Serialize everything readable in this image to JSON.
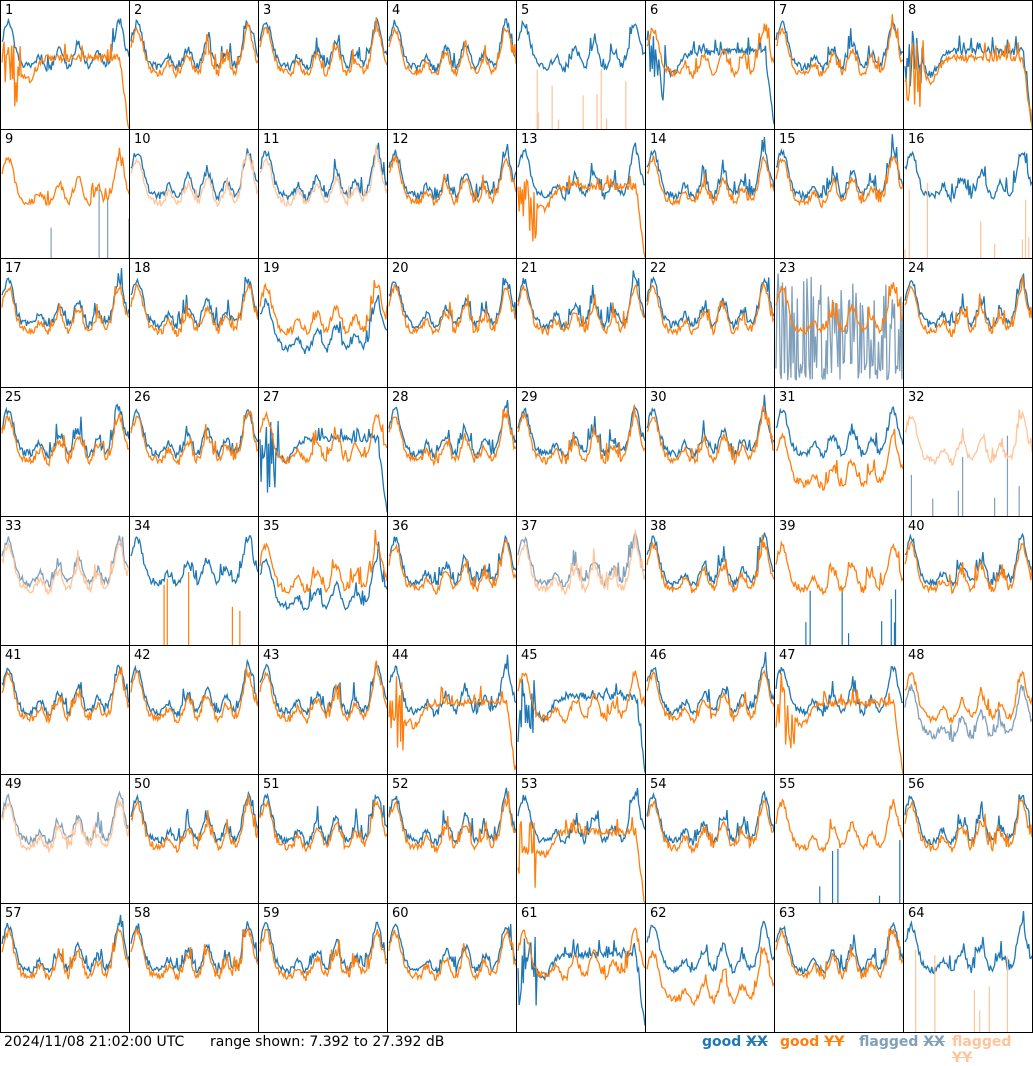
{
  "footer": {
    "timestamp": "2024/11/08 21:02:00 UTC",
    "range": "range shown: 7.392 to 27.392 dB"
  },
  "legend": [
    {
      "pre": "good ",
      "rest": "XX",
      "color": "#1f77b4"
    },
    {
      "pre": "good ",
      "rest": "YY",
      "color": "#ff7f0e"
    },
    {
      "pre": "flagged ",
      "rest": "XX",
      "color": "#7f9fba"
    },
    {
      "pre": "flagged ",
      "rest": "YY",
      "color": "#ffc49a"
    }
  ],
  "colors": {
    "good_xx": "#1f77b4",
    "good_yy": "#ff7f0e",
    "flagged_xx": "#7f9fba",
    "flagged_yy": "#ffc49a"
  },
  "chart_data": {
    "type": "line",
    "layout": "8x8 small multiples",
    "ylim_db": [
      7.392,
      27.392
    ],
    "series_names": [
      "good XX",
      "good YY",
      "flagged XX",
      "flagged YY"
    ],
    "panels": [
      {
        "n": 1,
        "xx": "good",
        "yy": "good",
        "xx_shape": "normal",
        "yy_shape": "plateau"
      },
      {
        "n": 2,
        "xx": "good",
        "yy": "good",
        "xx_shape": "normal",
        "yy_shape": "normal"
      },
      {
        "n": 3,
        "xx": "good",
        "yy": "good",
        "xx_shape": "normal",
        "yy_shape": "normal"
      },
      {
        "n": 4,
        "xx": "good",
        "yy": "good",
        "xx_shape": "normal",
        "yy_shape": "normal"
      },
      {
        "n": 5,
        "xx": "good",
        "yy": "flagged",
        "xx_shape": "normal",
        "yy_shape": "spikes"
      },
      {
        "n": 6,
        "xx": "good",
        "yy": "good",
        "xx_shape": "plateau",
        "yy_shape": "normal"
      },
      {
        "n": 7,
        "xx": "good",
        "yy": "good",
        "xx_shape": "normal",
        "yy_shape": "normal"
      },
      {
        "n": 8,
        "xx": "good",
        "yy": "good",
        "xx_shape": "plateau",
        "yy_shape": "plateau"
      },
      {
        "n": 9,
        "xx": "flagged",
        "yy": "good",
        "xx_shape": "spikes",
        "yy_shape": "normal"
      },
      {
        "n": 10,
        "xx": "good",
        "yy": "flagged",
        "xx_shape": "normal",
        "yy_shape": "normal"
      },
      {
        "n": 11,
        "xx": "good",
        "yy": "flagged",
        "xx_shape": "normal",
        "yy_shape": "normal"
      },
      {
        "n": 12,
        "xx": "good",
        "yy": "good",
        "xx_shape": "normal",
        "yy_shape": "normal"
      },
      {
        "n": 13,
        "xx": "good",
        "yy": "good",
        "xx_shape": "normal",
        "yy_shape": "plateau"
      },
      {
        "n": 14,
        "xx": "good",
        "yy": "good",
        "xx_shape": "normal",
        "yy_shape": "normal"
      },
      {
        "n": 15,
        "xx": "good",
        "yy": "good",
        "xx_shape": "normal",
        "yy_shape": "normal"
      },
      {
        "n": 16,
        "xx": "good",
        "yy": "flagged",
        "xx_shape": "normal",
        "yy_shape": "spikes"
      },
      {
        "n": 17,
        "xx": "good",
        "yy": "good",
        "xx_shape": "normal",
        "yy_shape": "normal"
      },
      {
        "n": 18,
        "xx": "good",
        "yy": "good",
        "xx_shape": "normal",
        "yy_shape": "normal"
      },
      {
        "n": 19,
        "xx": "good",
        "yy": "good",
        "xx_shape": "low",
        "yy_shape": "normal"
      },
      {
        "n": 20,
        "xx": "good",
        "yy": "good",
        "xx_shape": "normal",
        "yy_shape": "normal"
      },
      {
        "n": 21,
        "xx": "good",
        "yy": "good",
        "xx_shape": "normal",
        "yy_shape": "normal"
      },
      {
        "n": 22,
        "xx": "good",
        "yy": "good",
        "xx_shape": "normal",
        "yy_shape": "normal"
      },
      {
        "n": 23,
        "xx": "flagged",
        "yy": "good",
        "xx_shape": "noisy",
        "yy_shape": "normal"
      },
      {
        "n": 24,
        "xx": "good",
        "yy": "good",
        "xx_shape": "normal",
        "yy_shape": "normal"
      },
      {
        "n": 25,
        "xx": "good",
        "yy": "good",
        "xx_shape": "normal",
        "yy_shape": "normal"
      },
      {
        "n": 26,
        "xx": "good",
        "yy": "good",
        "xx_shape": "normal",
        "yy_shape": "normal"
      },
      {
        "n": 27,
        "xx": "good",
        "yy": "good",
        "xx_shape": "plateau",
        "yy_shape": "normal"
      },
      {
        "n": 28,
        "xx": "good",
        "yy": "good",
        "xx_shape": "normal",
        "yy_shape": "normal"
      },
      {
        "n": 29,
        "xx": "good",
        "yy": "good",
        "xx_shape": "normal",
        "yy_shape": "normal"
      },
      {
        "n": 30,
        "xx": "good",
        "yy": "good",
        "xx_shape": "normal",
        "yy_shape": "normal"
      },
      {
        "n": 31,
        "xx": "good",
        "yy": "good",
        "xx_shape": "normal",
        "yy_shape": "low"
      },
      {
        "n": 32,
        "xx": "flagged",
        "yy": "flagged",
        "xx_shape": "spikes",
        "yy_shape": "normal"
      },
      {
        "n": 33,
        "xx": "flagged",
        "yy": "flagged",
        "xx_shape": "normal",
        "yy_shape": "normal"
      },
      {
        "n": 34,
        "xx": "good",
        "yy": "good",
        "xx_shape": "normal",
        "yy_shape": "spikes"
      },
      {
        "n": 35,
        "xx": "good",
        "yy": "good",
        "xx_shape": "low",
        "yy_shape": "normal"
      },
      {
        "n": 36,
        "xx": "good",
        "yy": "good",
        "xx_shape": "normal",
        "yy_shape": "normal"
      },
      {
        "n": 37,
        "xx": "flagged",
        "yy": "flagged",
        "xx_shape": "normal",
        "yy_shape": "normal"
      },
      {
        "n": 38,
        "xx": "good",
        "yy": "good",
        "xx_shape": "normal",
        "yy_shape": "normal"
      },
      {
        "n": 39,
        "xx": "good",
        "yy": "good",
        "xx_shape": "spikes",
        "yy_shape": "normal"
      },
      {
        "n": 40,
        "xx": "good",
        "yy": "good",
        "xx_shape": "normal",
        "yy_shape": "normal"
      },
      {
        "n": 41,
        "xx": "good",
        "yy": "good",
        "xx_shape": "normal",
        "yy_shape": "normal"
      },
      {
        "n": 42,
        "xx": "good",
        "yy": "good",
        "xx_shape": "normal",
        "yy_shape": "normal"
      },
      {
        "n": 43,
        "xx": "good",
        "yy": "good",
        "xx_shape": "normal",
        "yy_shape": "normal"
      },
      {
        "n": 44,
        "xx": "good",
        "yy": "good",
        "xx_shape": "normal",
        "yy_shape": "plateau"
      },
      {
        "n": 45,
        "xx": "good",
        "yy": "good",
        "xx_shape": "plateau",
        "yy_shape": "normal"
      },
      {
        "n": 46,
        "xx": "good",
        "yy": "good",
        "xx_shape": "normal",
        "yy_shape": "normal"
      },
      {
        "n": 47,
        "xx": "good",
        "yy": "good",
        "xx_shape": "normal",
        "yy_shape": "plateau"
      },
      {
        "n": 48,
        "xx": "flagged",
        "yy": "good",
        "xx_shape": "low",
        "yy_shape": "normal"
      },
      {
        "n": 49,
        "xx": "flagged",
        "yy": "flagged",
        "xx_shape": "normal",
        "yy_shape": "normal"
      },
      {
        "n": 50,
        "xx": "good",
        "yy": "good",
        "xx_shape": "normal",
        "yy_shape": "normal"
      },
      {
        "n": 51,
        "xx": "good",
        "yy": "good",
        "xx_shape": "normal",
        "yy_shape": "normal"
      },
      {
        "n": 52,
        "xx": "good",
        "yy": "good",
        "xx_shape": "normal",
        "yy_shape": "normal"
      },
      {
        "n": 53,
        "xx": "good",
        "yy": "good",
        "xx_shape": "normal",
        "yy_shape": "plateau"
      },
      {
        "n": 54,
        "xx": "good",
        "yy": "good",
        "xx_shape": "normal",
        "yy_shape": "normal"
      },
      {
        "n": 55,
        "xx": "good",
        "yy": "good",
        "xx_shape": "spikes",
        "yy_shape": "normal"
      },
      {
        "n": 56,
        "xx": "good",
        "yy": "good",
        "xx_shape": "normal",
        "yy_shape": "normal"
      },
      {
        "n": 57,
        "xx": "good",
        "yy": "good",
        "xx_shape": "normal",
        "yy_shape": "normal"
      },
      {
        "n": 58,
        "xx": "good",
        "yy": "good",
        "xx_shape": "normal",
        "yy_shape": "normal"
      },
      {
        "n": 59,
        "xx": "good",
        "yy": "good",
        "xx_shape": "normal",
        "yy_shape": "normal"
      },
      {
        "n": 60,
        "xx": "good",
        "yy": "good",
        "xx_shape": "normal",
        "yy_shape": "normal"
      },
      {
        "n": 61,
        "xx": "good",
        "yy": "good",
        "xx_shape": "plateau",
        "yy_shape": "normal"
      },
      {
        "n": 62,
        "xx": "good",
        "yy": "good",
        "xx_shape": "normal",
        "yy_shape": "low"
      },
      {
        "n": 63,
        "xx": "good",
        "yy": "good",
        "xx_shape": "normal",
        "yy_shape": "normal"
      },
      {
        "n": 64,
        "xx": "good",
        "yy": "flagged",
        "xx_shape": "normal",
        "yy_shape": "spikes"
      }
    ]
  }
}
